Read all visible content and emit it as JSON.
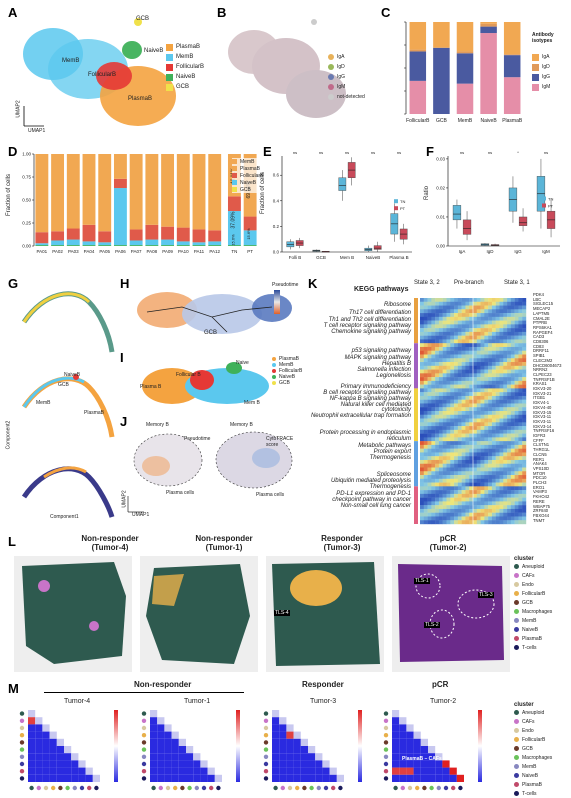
{
  "panels": {
    "A": "A",
    "B": "B",
    "C": "C",
    "D": "D",
    "E": "E",
    "F": "F",
    "G": "G",
    "H": "H",
    "I": "I",
    "J": "J",
    "K": "K",
    "L": "L",
    "M": "M"
  },
  "panelA": {
    "labels": [
      "GCB",
      "MemB",
      "NaiveB",
      "FollicularB",
      "PlasmaB"
    ],
    "axis_x": "UMAP1",
    "axis_y": "UMAP2",
    "legend": [
      {
        "name": "PlasmaB",
        "color": "#f4a340"
      },
      {
        "name": "MemB",
        "color": "#5bc8ee"
      },
      {
        "name": "FollicularB",
        "color": "#e53935"
      },
      {
        "name": "NaiveB",
        "color": "#3fb15a"
      },
      {
        "name": "GCB",
        "color": "#f0e14a"
      }
    ]
  },
  "panelB": {
    "legend": [
      {
        "name": "IgA",
        "color": "#e8b25a"
      },
      {
        "name": "IgD",
        "color": "#9ab85a"
      },
      {
        "name": "IgG",
        "color": "#6a7ab0"
      },
      {
        "name": "IgM",
        "color": "#c06a8a"
      },
      {
        "name": "not-detected",
        "color": "#cccccc"
      }
    ]
  },
  "panelC": {
    "legend_title": "Antibody isotypes",
    "chart_data": {
      "type": "bar",
      "stacked": true,
      "categories": [
        "FollicularB",
        "GCB",
        "MemB",
        "NaiveB",
        "PlasmaB"
      ],
      "series": [
        {
          "name": "IgM",
          "color": "#e58ea8",
          "values": [
            0.36,
            0.0,
            0.33,
            0.88,
            0.4
          ]
        },
        {
          "name": "IgG",
          "color": "#4a5aa0",
          "values": [
            0.32,
            0.72,
            0.33,
            0.07,
            0.24
          ]
        },
        {
          "name": "IgD",
          "color": "#e09a5a",
          "values": [
            0.02,
            0.0,
            0.02,
            0.03,
            0.01
          ]
        },
        {
          "name": "IgA",
          "color": "#f1a852",
          "values": [
            0.3,
            0.28,
            0.32,
            0.02,
            0.35
          ]
        }
      ],
      "ylim": [
        0,
        1
      ]
    }
  },
  "panelD": {
    "ylabel": "Fraction of cells",
    "yticks": [
      "0.00",
      "0.25",
      "0.50",
      "0.75",
      "1.00"
    ],
    "legend": [
      {
        "name": "MemB",
        "color": "#f1a852"
      },
      {
        "name": "PlasmaB",
        "color": "#f1a852"
      },
      {
        "name": "FollicularB",
        "color": "#e05a4a"
      },
      {
        "name": "NaiveB",
        "color": "#5bc8ee"
      },
      {
        "name": "GCB",
        "color": "#f0e14a"
      }
    ],
    "chart_data": {
      "type": "bar",
      "stacked": true,
      "categories": [
        "PA01",
        "PA02",
        "PA03",
        "PA04",
        "PA05",
        "PA06",
        "PA07",
        "PA08",
        "PA09",
        "PA10",
        "PA11",
        "PA12",
        "TN",
        "PT"
      ],
      "series": [
        {
          "name": "GCB",
          "color": "#3fb15a",
          "values": [
            0.01,
            0.01,
            0.01,
            0.01,
            0.01,
            0.01,
            0.01,
            0.01,
            0.01,
            0.01,
            0.01,
            0.01,
            0.01,
            0.01
          ]
        },
        {
          "name": "NaiveB",
          "color": "#5bc8ee",
          "values": [
            0.02,
            0.05,
            0.06,
            0.04,
            0.03,
            0.62,
            0.05,
            0.06,
            0.06,
            0.04,
            0.03,
            0.04,
            0.37,
            0.16
          ]
        },
        {
          "name": "FollicularB",
          "color": "#e05a4a",
          "values": [
            0.12,
            0.1,
            0.12,
            0.18,
            0.12,
            0.1,
            0.12,
            0.16,
            0.14,
            0.15,
            0.14,
            0.12,
            0.16,
            0.15
          ]
        },
        {
          "name": "PlasmaB",
          "color": "#f1a852",
          "values": [
            0.85,
            0.84,
            0.81,
            0.77,
            0.84,
            0.27,
            0.82,
            0.77,
            0.79,
            0.8,
            0.82,
            0.83,
            0.46,
            0.68
          ]
        }
      ],
      "annotations": [
        "46.11%",
        "37.09%",
        "15.6%",
        "69.15%",
        "15.6%"
      ]
    }
  },
  "panelE": {
    "ylabel": "Fraction of cells",
    "categories": [
      "Folli B",
      "GCB",
      "Mem B",
      "NaiveB",
      "Plasma B"
    ],
    "yticks": [
      "0.0",
      "0.2",
      "0.4",
      "0.6"
    ],
    "legend": [
      {
        "name": "TN",
        "color": "#5bb5d8"
      },
      {
        "name": "PT",
        "color": "#c84a5a"
      }
    ],
    "sig": [
      "ns",
      "ns",
      "ns",
      "ns",
      "ns"
    ]
  },
  "panelF": {
    "ylabel": "Ratio",
    "categories": [
      "IgA",
      "IgD",
      "IgG",
      "IgM"
    ],
    "yticks": [
      "0.00",
      "0.01",
      "0.02",
      "0.03"
    ],
    "legend": [
      {
        "name": "TN",
        "color": "#5bb5d8"
      },
      {
        "name": "PT",
        "color": "#c84a5a"
      }
    ],
    "sig": [
      "ns",
      "ns",
      "*",
      "ns"
    ]
  },
  "panelG": {
    "xlabel": "Component1",
    "ylabel": "Component2",
    "labels": [
      "NaiveB",
      "GCB",
      "MemB",
      "FollicularB",
      "PlasmaB"
    ]
  },
  "panelH": {
    "legend_title": "Pseudotime",
    "label": "GCB"
  },
  "panelI": {
    "labels": [
      "Naive",
      "Follicular B",
      "Plasma B",
      "Mem B"
    ],
    "legend": [
      {
        "name": "PlasmaB",
        "color": "#f4a340"
      },
      {
        "name": "MemB",
        "color": "#5bc8ee"
      },
      {
        "name": "FollicularB",
        "color": "#e53935"
      },
      {
        "name": "NaiveB",
        "color": "#3fb15a"
      },
      {
        "name": "GCB",
        "color": "#f0e14a"
      }
    ]
  },
  "panelJ": {
    "labels": [
      "Memory B",
      "Memory B",
      "Plasma cells",
      "Plasma cells"
    ],
    "legend_left": "Pseudotime",
    "legend_right": "CytoTRACE score",
    "axis_x": "UMAP1",
    "axis_y": "UMAP2"
  },
  "panelK": {
    "title": "KEGG pathways",
    "states": [
      "State 3, 2",
      "Pre-branch",
      "State 3, 1"
    ],
    "legend": [
      "Cell Type",
      "Gene_cluster"
    ],
    "terms": [
      "Ribosome",
      "Th17 cell differentiation",
      "Th1 and Th2 cell differentiation",
      "T cell receptor signaling pathway",
      "Chemokine signaling pathway",
      "p53 signaling pathway",
      "MAPK signaling pathway",
      "Hepatitis B",
      "Salmonella infection",
      "Legionellosis",
      "Primary immunodeficiency",
      "B cell receptor signaling pathway",
      "NF-kappa B signaling pathway",
      "Natural killer cell mediated",
      "cytotoxicity",
      "Neutrophil extracellular trap formation",
      "Protein processing in endoplasmic",
      "reticulum",
      "Metabolic pathways",
      "Protein export",
      "Thermogenesis",
      "Spliceosome",
      "Ubiquitin mediated proteolysis",
      "Thermogenesis",
      "PD-L1 expression and PD-1",
      "checkpoint pathway in cancer",
      "Non-small cell lung cancer"
    ],
    "genes": [
      "PDK4",
      "LBC",
      "SIGLEC15",
      "MECAP2",
      "LAPTM5",
      "CMAL2E",
      "PTPRB",
      "RPS6KA1",
      "RAPGEF4",
      "CAD3",
      "CD8306",
      "CD83",
      "DRRF11",
      "SPIB1",
      "CLEC2M2",
      "DHCD6004673",
      "NRRN2",
      "CLPEC23",
      "TNFRSF1B",
      "KRAS1",
      "IGKV3-20",
      "IGKV3-21",
      "ITGB1",
      "IGKV4-1",
      "IGKV4-40",
      "IGKV3-15",
      "IGKV3-11",
      "IGKV3-11",
      "IGKV3-14",
      "TNFRSF16",
      "IGFR3",
      "CFFF",
      "CLSTN1",
      "THRG1L",
      "CLCN5",
      "RER1",
      "ANAK4",
      "VPS10D",
      "MTOR",
      "PDC10",
      "PLCH3",
      "ERO1",
      "VAMP3",
      "FKHO42",
      "RERE",
      "WBAP75",
      "ZRF840",
      "FBXO44",
      "TNMT"
    ]
  },
  "panelL": {
    "titles": [
      [
        "Non-responder",
        "(Tumor-4)"
      ],
      [
        "Non-responder",
        "(Tumor-1)"
      ],
      [
        "Responder",
        "(Tumor-3)"
      ],
      [
        "pCR",
        "(Tumor-2)"
      ]
    ],
    "tls_labels": [
      "TLS-4",
      "TLS-1",
      "TLS-2",
      "TLS-3"
    ],
    "legend_title": "cluster",
    "clusters": [
      {
        "name": "Aneuploid",
        "color": "#2e5a4f"
      },
      {
        "name": "CAFs",
        "color": "#c874c8"
      },
      {
        "name": "Endo",
        "color": "#d7c9a0"
      },
      {
        "name": "FollicularB",
        "color": "#e8b04a"
      },
      {
        "name": "GCB",
        "color": "#6a3a2a"
      },
      {
        "name": "Macrophages",
        "color": "#6ac25a"
      },
      {
        "name": "MemB",
        "color": "#8888c0"
      },
      {
        "name": "NaiveB",
        "color": "#3a3aa0"
      },
      {
        "name": "PlasmaB",
        "color": "#c04a6a"
      },
      {
        "name": "T-cells",
        "color": "#1a1a5a"
      }
    ]
  },
  "panelM": {
    "group_left": "Non-responder",
    "group_mid": "Responder",
    "group_right": "pCR",
    "titles": [
      "Tumor-4",
      "Tumor-1",
      "Tumor-3",
      "Tumor-2"
    ],
    "annotation": "PlasmaB – CAFs – Mφ",
    "legend_title": "cluster",
    "clusters": [
      {
        "name": "Aneuploid",
        "color": "#2e5a4f"
      },
      {
        "name": "CAFs",
        "color": "#c874c8"
      },
      {
        "name": "Endo",
        "color": "#d7c9a0"
      },
      {
        "name": "FollicularB",
        "color": "#e8b04a"
      },
      {
        "name": "GCB",
        "color": "#6a3a2a"
      },
      {
        "name": "Macrophages",
        "color": "#6ac25a"
      },
      {
        "name": "MemB",
        "color": "#8888c0"
      },
      {
        "name": "NaiveB",
        "color": "#3a3aa0"
      },
      {
        "name": "PlasmaB",
        "color": "#c04a6a"
      },
      {
        "name": "T-cells",
        "color": "#1a1a5a"
      }
    ]
  }
}
